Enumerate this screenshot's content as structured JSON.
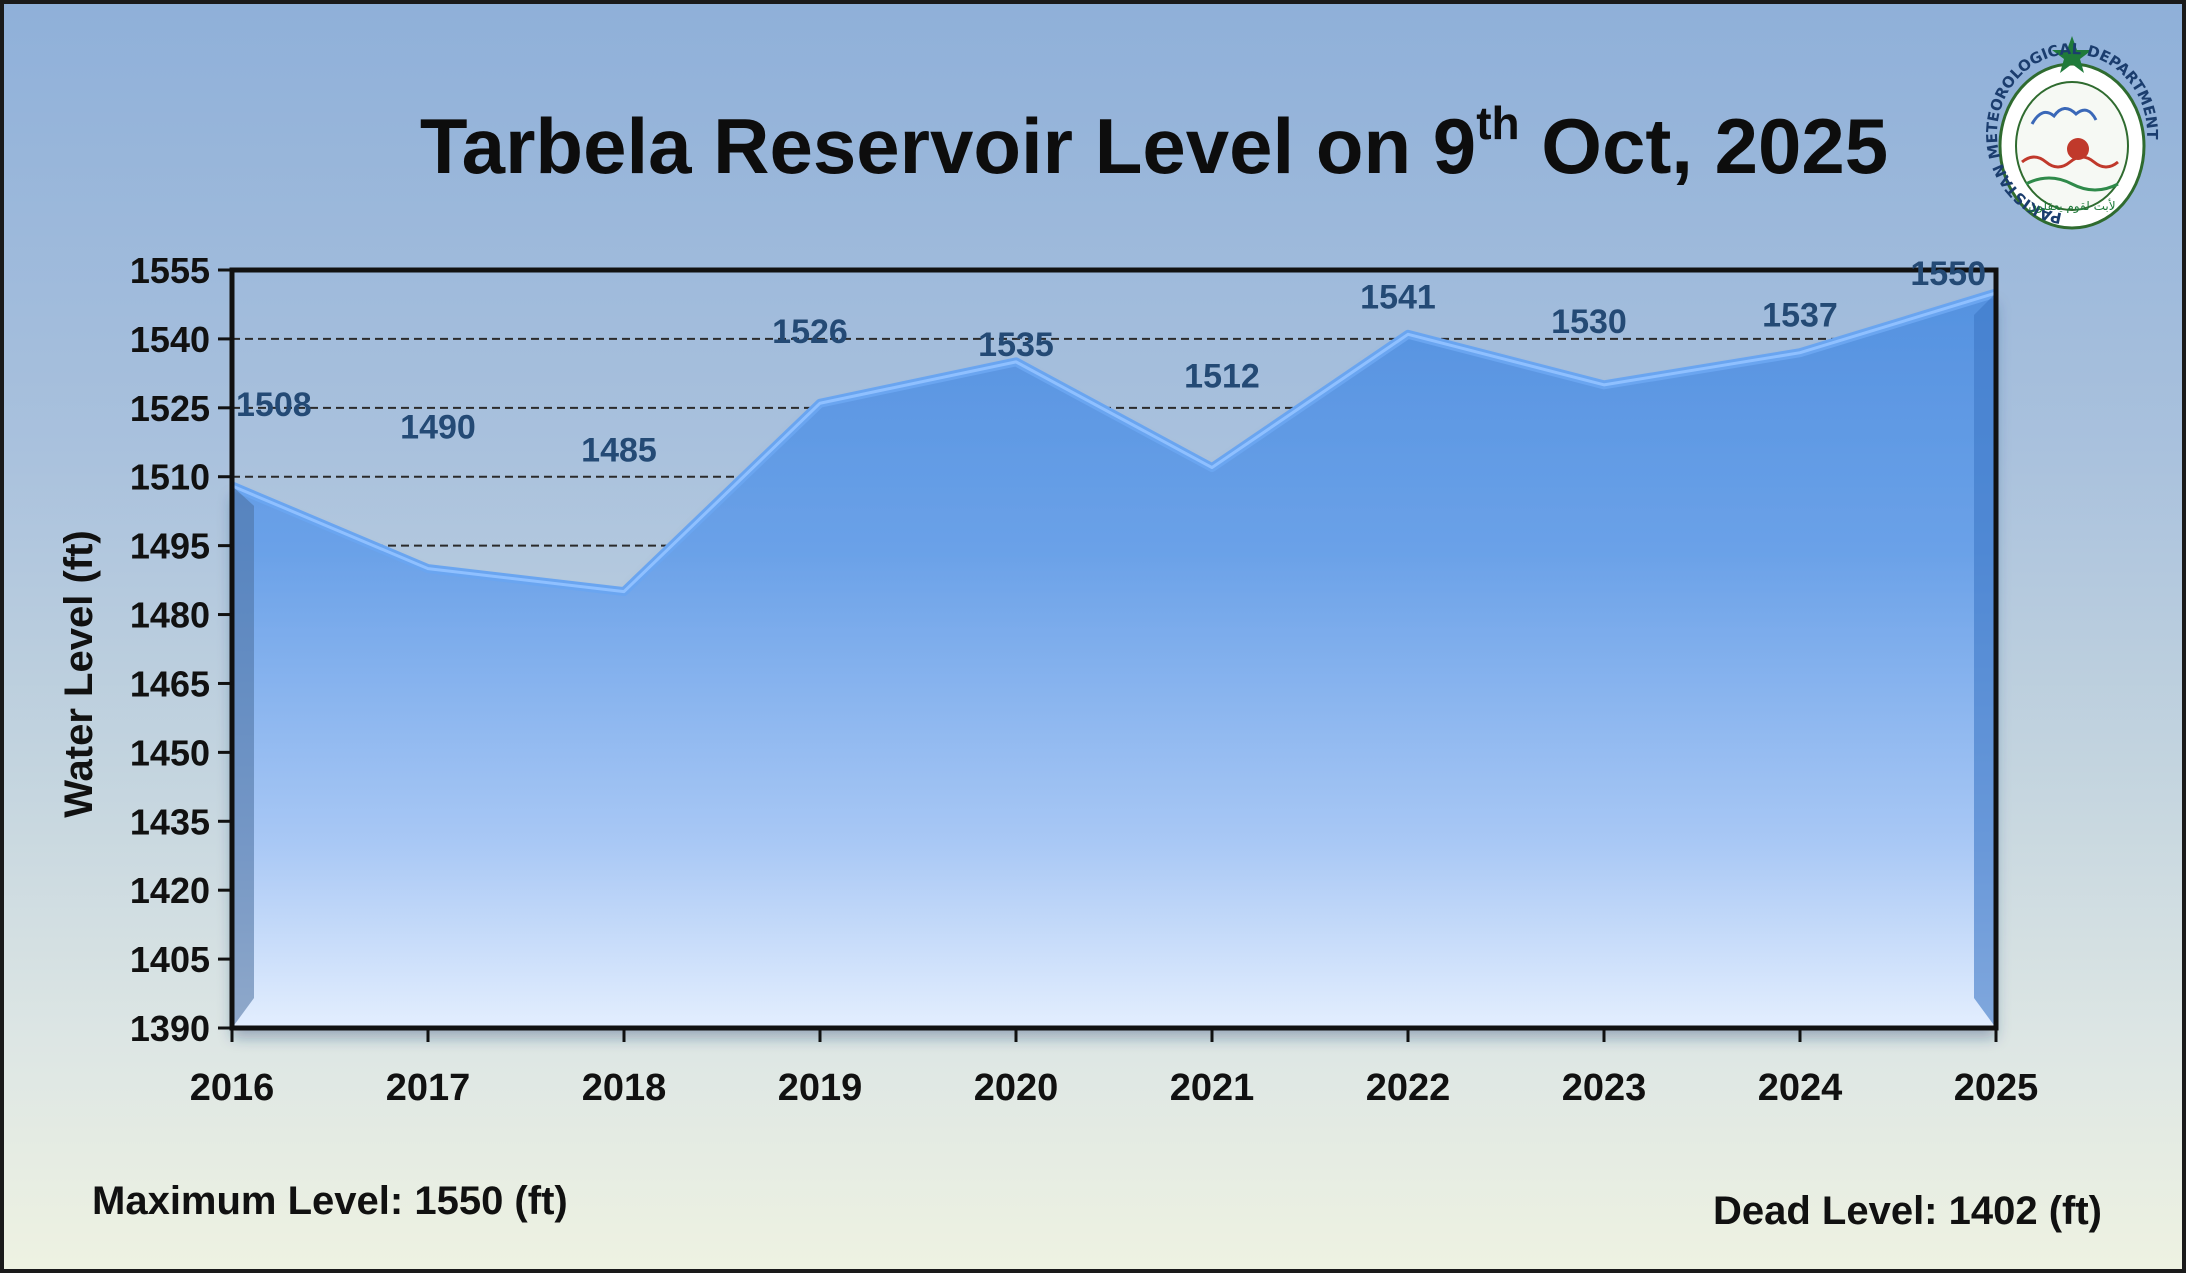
{
  "title": {
    "main": "Tarbela Reservoir Level on 9",
    "sup": "th",
    "tail": " Oct, 2025"
  },
  "logo": {
    "icon": "pakistan-meteorological-department-seal",
    "ring_text": "PAKISTAN METEOROLOGICAL DEPARTMENT",
    "motto": "لأبت لقوم يعقلون"
  },
  "footer": {
    "max_level": "Maximum Level: 1550 (ft)",
    "dead_level": "Dead Level: 1402 (ft)"
  },
  "chart_data": {
    "type": "area",
    "title": "Tarbela Reservoir Level on 9th Oct, 2025",
    "xlabel": "",
    "ylabel": "Water Level (ft)",
    "categories": [
      "2016",
      "2017",
      "2018",
      "2019",
      "2020",
      "2021",
      "2022",
      "2023",
      "2024",
      "2025"
    ],
    "values": [
      1508,
      1490,
      1485,
      1526,
      1535,
      1512,
      1541,
      1530,
      1537,
      1550
    ],
    "data_labels": [
      "1508",
      "1490",
      "1485",
      "1526",
      "1535",
      "1512",
      "1541",
      "1530",
      "1537",
      "1550"
    ],
    "ylim": [
      1390,
      1555
    ],
    "yticks": [
      1390,
      1405,
      1420,
      1435,
      1450,
      1465,
      1480,
      1495,
      1510,
      1525,
      1540,
      1555
    ],
    "gridlines": [
      1495,
      1510,
      1525,
      1540
    ],
    "grid": "horizontal-dashed",
    "legend": "none",
    "colors": {
      "fill_top": "#5a97e3",
      "fill_bottom": "#cfe0fb",
      "line": "#6aa5f0",
      "label": "#244a75",
      "axis": "#111111"
    }
  }
}
